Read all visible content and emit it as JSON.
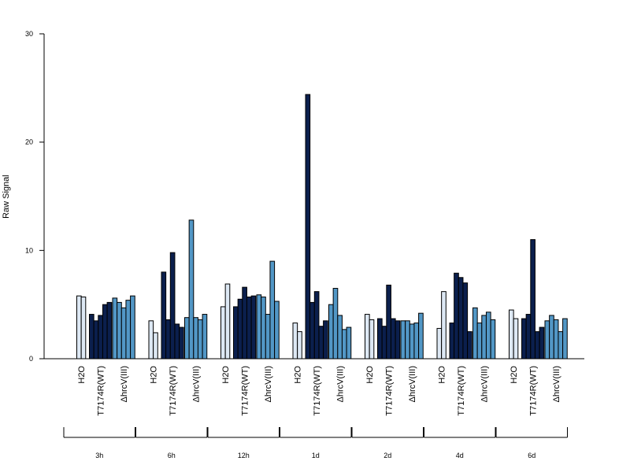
{
  "chart_data": {
    "type": "bar",
    "title": "",
    "xlabel": "",
    "ylabel": "Raw Signal",
    "ylim": [
      0,
      30
    ],
    "y_ticks": [
      0,
      10,
      20,
      30
    ],
    "grid": false,
    "groups": [
      "H2O",
      "T7174R(WT)",
      "ΔhrcV(III)"
    ],
    "group_colors": {
      "H2O": "#dde8f4",
      "T7174R(WT)": "#0b1f4d",
      "ΔhrcV(III)": "#5297c6"
    },
    "timepoints": [
      {
        "label": "3h",
        "H2O": [
          5.8,
          5.7
        ],
        "T7174R(WT)": [
          4.1,
          3.5,
          4.0,
          5.0,
          5.2
        ],
        "ΔhrcV(III)": [
          5.6,
          5.2,
          4.7,
          5.4,
          5.8
        ]
      },
      {
        "label": "6h",
        "H2O": [
          3.5,
          2.4
        ],
        "T7174R(WT)": [
          8.0,
          3.6,
          9.8,
          3.2,
          2.9
        ],
        "ΔhrcV(III)": [
          3.8,
          12.8,
          3.8,
          3.6,
          4.1
        ]
      },
      {
        "label": "12h",
        "H2O": [
          4.8,
          6.9
        ],
        "T7174R(WT)": [
          4.8,
          5.5,
          6.6,
          5.7,
          5.8
        ],
        "ΔhrcV(III)": [
          5.9,
          5.7,
          4.1,
          9.0,
          5.3
        ]
      },
      {
        "label": "1d",
        "H2O": [
          3.3,
          2.5
        ],
        "T7174R(WT)": [
          24.4,
          5.2,
          6.2,
          3.0,
          3.5
        ],
        "ΔhrcV(III)": [
          5.0,
          6.5,
          4.0,
          2.7,
          2.9
        ]
      },
      {
        "label": "2d",
        "H2O": [
          4.1,
          3.6
        ],
        "T7174R(WT)": [
          3.7,
          3.0,
          6.8,
          3.7,
          3.5
        ],
        "ΔhrcV(III)": [
          3.5,
          3.5,
          3.2,
          3.3,
          4.2
        ]
      },
      {
        "label": "4d",
        "H2O": [
          2.8,
          6.2
        ],
        "T7174R(WT)": [
          3.3,
          7.9,
          7.5,
          7.0,
          2.5
        ],
        "ΔhrcV(III)": [
          4.7,
          3.3,
          4.0,
          4.3,
          3.6
        ]
      },
      {
        "label": "6d",
        "H2O": [
          4.5,
          3.7
        ],
        "T7174R(WT)": [
          3.7,
          4.1,
          11.0,
          2.5,
          2.9
        ],
        "ΔhrcV(III)": [
          3.5,
          4.0,
          3.6,
          2.5,
          3.7
        ]
      }
    ]
  }
}
